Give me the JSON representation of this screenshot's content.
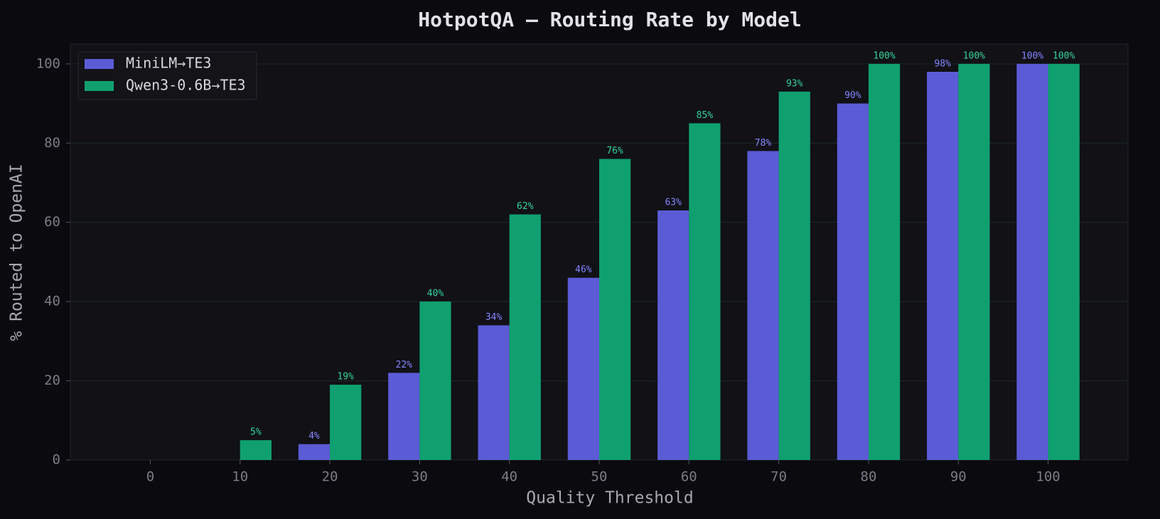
{
  "chart_data": {
    "type": "bar",
    "title": "HotpotQA — Routing Rate by Model",
    "x_label": "Quality Threshold",
    "y_label": "% Routed to OpenAI",
    "categories": [
      "0",
      "10",
      "20",
      "30",
      "40",
      "50",
      "60",
      "70",
      "80",
      "90",
      "100"
    ],
    "series": [
      {
        "name": "MiniLM→TE3",
        "color": "#5b5bd6",
        "label_color": "#8484ff",
        "values": [
          0,
          0,
          4,
          22,
          34,
          46,
          63,
          78,
          90,
          98,
          100
        ],
        "value_labels": [
          null,
          null,
          "4%",
          "22%",
          "34%",
          "46%",
          "63%",
          "78%",
          "90%",
          "98%",
          "100%"
        ]
      },
      {
        "name": "Qwen3-0.6B→TE3",
        "color": "#10a070",
        "label_color": "#34d399",
        "values": [
          0,
          5,
          19,
          40,
          62,
          76,
          85,
          93,
          100,
          100,
          100
        ],
        "value_labels": [
          null,
          "5%",
          "19%",
          "40%",
          "62%",
          "76%",
          "85%",
          "93%",
          "100%",
          "100%",
          "100%"
        ]
      }
    ],
    "ylim": [
      0,
      105
    ],
    "yticks": [
      0,
      20,
      40,
      60,
      80,
      100
    ],
    "grid": true,
    "legend": "upper left"
  }
}
